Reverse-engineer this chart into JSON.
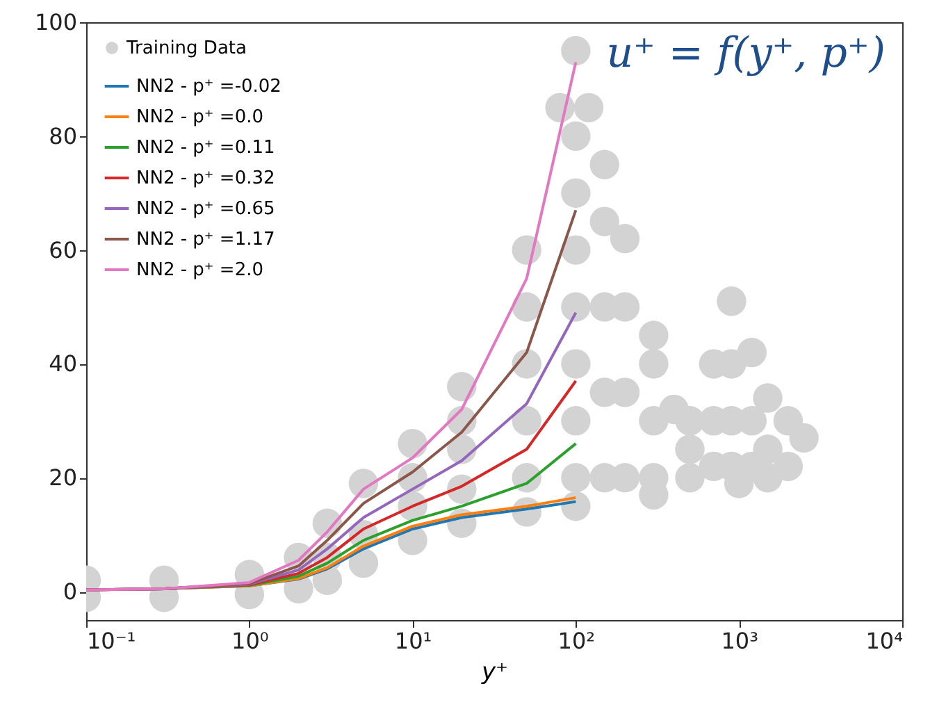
{
  "chart_data": {
    "type": "line",
    "xlabel": "y⁺",
    "annotations": [
      "u⁺ = f(y⁺, p⁺)"
    ],
    "log": "x",
    "xlim": [
      0.1,
      10000
    ],
    "xticks": [
      {
        "value": 0.1,
        "label": "10⁻¹"
      },
      {
        "value": 1,
        "label": "10⁰"
      },
      {
        "value": 10,
        "label": "10¹"
      },
      {
        "value": 100,
        "label": "10²"
      },
      {
        "value": 1000,
        "label": "10³"
      },
      {
        "value": 10000,
        "label": "10⁴"
      }
    ],
    "ylim": [
      -5,
      100
    ],
    "yticks": [
      0,
      20,
      40,
      60,
      80,
      100
    ],
    "grid": false,
    "legend": "top left",
    "line_style": "solid",
    "x": [
      0.1,
      0.3,
      1,
      2,
      3,
      5,
      10,
      20,
      50,
      100
    ],
    "series": [
      {
        "name": "Training Data",
        "type": "scatter",
        "color": "#d3d3d3",
        "x": [
          0.1,
          0.3,
          1,
          2,
          3,
          5,
          10,
          20,
          50,
          100,
          300,
          1000,
          1500,
          2000,
          0.1,
          0.3,
          1,
          2,
          3,
          5,
          10,
          20,
          50,
          80,
          100,
          120,
          150,
          200,
          300,
          400,
          500,
          700,
          900,
          1200,
          1500,
          2000,
          2500,
          100,
          100,
          100,
          100,
          100,
          100,
          100,
          150,
          150,
          150,
          150,
          200,
          200,
          200,
          300,
          300,
          300,
          500,
          500,
          700,
          700,
          900,
          900,
          900,
          1200,
          1200,
          1500,
          50,
          50,
          50,
          50,
          20,
          20,
          20,
          10,
          10,
          5,
          3
        ],
        "values": [
          -1,
          -1,
          -0.5,
          0.5,
          2,
          5,
          9,
          12,
          14,
          15,
          17,
          19,
          20,
          22,
          2,
          2,
          3,
          6,
          12,
          19,
          26,
          36,
          60,
          85,
          95,
          85,
          75,
          62,
          45,
          32,
          30,
          40,
          51,
          42,
          34,
          30,
          27,
          20,
          30,
          40,
          50,
          60,
          70,
          80,
          20,
          35,
          50,
          65,
          20,
          35,
          50,
          20,
          30,
          40,
          20,
          25,
          22,
          30,
          22,
          30,
          40,
          22,
          30,
          25,
          20,
          30,
          40,
          50,
          18,
          25,
          30,
          15,
          20,
          10,
          6
        ]
      },
      {
        "name": "NN2 - p⁺ =-0.02",
        "color": "#1f77b4",
        "values": [
          0.3,
          0.5,
          1.0,
          2.2,
          4,
          7.5,
          11,
          13,
          14.5,
          15.8
        ]
      },
      {
        "name": "NN2 - p⁺ =0.0",
        "color": "#ff7f0e",
        "values": [
          0.3,
          0.5,
          1.0,
          2.3,
          4.2,
          8,
          11.5,
          13.5,
          15,
          16.5
        ]
      },
      {
        "name": "NN2 - p⁺ =0.11",
        "color": "#2ca02c",
        "values": [
          0.3,
          0.5,
          1.1,
          2.7,
          5,
          9,
          12.5,
          15,
          19,
          26
        ]
      },
      {
        "name": "NN2 - p⁺ =0.32",
        "color": "#d62728",
        "values": [
          0.3,
          0.5,
          1.2,
          3.2,
          6,
          11,
          15,
          18.5,
          25,
          37
        ]
      },
      {
        "name": "NN2 - p⁺ =0.65",
        "color": "#9467bd",
        "values": [
          0.3,
          0.5,
          1.3,
          3.8,
          7.5,
          13,
          18,
          23,
          33,
          49
        ]
      },
      {
        "name": "NN2 - p⁺ =1.17",
        "color": "#8c564b",
        "values": [
          0.3,
          0.5,
          1.4,
          4.5,
          9,
          15.5,
          21,
          28,
          42,
          67
        ]
      },
      {
        "name": "NN2 - p⁺ =2.0",
        "color": "#e377c2",
        "values": [
          0.3,
          0.5,
          1.6,
          5.5,
          10.5,
          18,
          23.5,
          32,
          55,
          93
        ]
      }
    ]
  }
}
